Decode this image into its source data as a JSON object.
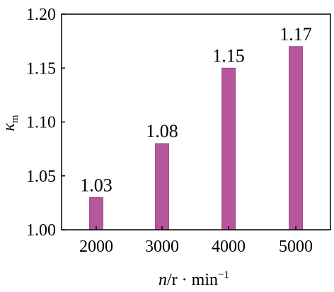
{
  "chart_data": {
    "type": "bar",
    "categories": [
      "2000",
      "3000",
      "4000",
      "5000"
    ],
    "values": [
      1.03,
      1.08,
      1.15,
      1.17
    ],
    "data_labels": [
      "1.03",
      "1.08",
      "1.15",
      "1.17"
    ],
    "y_ticks": [
      "1.00",
      "1.05",
      "1.10",
      "1.15",
      "1.20"
    ],
    "ylim": [
      1.0,
      1.2
    ],
    "ylabel": {
      "base": "κ",
      "sub": "m"
    },
    "xlabel": {
      "var": "n",
      "unit_text": "/r · min",
      "exp": "−1"
    },
    "bar_color": "#b5579a",
    "grid": false,
    "title": ""
  }
}
